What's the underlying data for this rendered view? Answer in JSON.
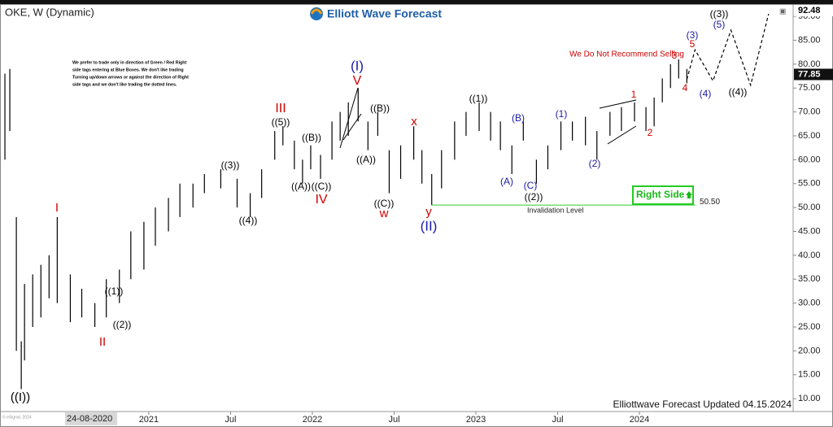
{
  "chart_data": {
    "type": "ohlc",
    "title": "OKE, W (Dynamic)",
    "brand": "Elliott Wave Forecast",
    "footer": "Elliottwave Forecast Updated 04.15.2024",
    "warning": "We Do Not Recommend Selling",
    "note": [
      "We prefer to trade only in direction of Green / Red Right",
      "side tags entering at Blue Boxes. We don't like trading",
      "Turning up/down arrows or against the direction of Right",
      "side tags and we don't like trading the dotted lines."
    ],
    "right_side": "Right Side",
    "cursor_label": "24-08-2020",
    "last_high": {
      "value": 92.48,
      "label": "92.48"
    },
    "last_price": {
      "value": 77.85,
      "label": "77.85"
    },
    "invalidation": {
      "value": 50.5,
      "label": "50.50",
      "text": "Invalidation Level",
      "start": 2022.73
    },
    "color": "#000000",
    "x": [
      2020.12,
      2020.15,
      2020.19,
      2020.22,
      2020.24,
      2020.29,
      2020.34,
      2020.39,
      2020.44,
      2020.52,
      2020.59,
      2020.67,
      2020.74,
      2020.82,
      2020.89,
      2020.97,
      2021.04,
      2021.12,
      2021.19,
      2021.27,
      2021.34,
      2021.44,
      2021.54,
      2021.62,
      2021.69,
      2021.77,
      2021.82,
      2021.89,
      2021.94,
      2021.99,
      2022.05,
      2022.12,
      2022.17,
      2022.22,
      2022.28,
      2022.34,
      2022.4,
      2022.47,
      2022.54,
      2022.62,
      2022.67,
      2022.73,
      2022.79,
      2022.87,
      2022.94,
      2023.02,
      2023.09,
      2023.15,
      2023.22,
      2023.29,
      2023.37,
      2023.44,
      2023.52,
      2023.59,
      2023.67,
      2023.74,
      2023.82,
      2023.89,
      2023.97,
      2024.04,
      2024.09,
      2024.14,
      2024.19,
      2024.24,
      2024.29
    ],
    "high": [
      78,
      79,
      48,
      22,
      34,
      36,
      38,
      40,
      48,
      36,
      33,
      30,
      35,
      37,
      45,
      47,
      50,
      52,
      55,
      55,
      57,
      58,
      56,
      53,
      58,
      66,
      67,
      64,
      60,
      63,
      61,
      68,
      70,
      72,
      75,
      68,
      70,
      62,
      63,
      67,
      62,
      57,
      62,
      68,
      70,
      72,
      70,
      68,
      63,
      68,
      60,
      63,
      68,
      68,
      69,
      66,
      70,
      71,
      72,
      71,
      73,
      77,
      80,
      81,
      79
    ],
    "low": [
      60,
      66,
      20,
      12,
      18,
      25,
      27,
      31,
      30,
      26,
      27,
      25,
      27,
      30,
      35,
      37,
      42,
      45,
      48,
      50,
      53,
      54,
      50,
      48,
      52,
      60,
      63,
      58,
      55,
      58,
      56,
      60,
      64,
      65,
      68,
      62,
      65,
      53,
      56,
      60,
      55,
      50.5,
      54,
      60,
      65,
      66,
      64,
      62,
      57,
      64,
      55,
      58,
      62,
      64,
      63,
      60,
      65,
      66,
      68,
      66,
      67,
      72,
      75,
      77,
      76
    ],
    "projection": {
      "x": [
        2024.29,
        2024.34,
        2024.45,
        2024.56,
        2024.68,
        2024.79
      ],
      "values": [
        76.8,
        83,
        76.5,
        87.1,
        75.6,
        90.5
      ]
    },
    "xlim": [
      2020.09,
      2024.94
    ],
    "ylim": [
      7.3,
      92.4
    ],
    "xticks": [
      {
        "value": 2021,
        "label": "2021"
      },
      {
        "value": 2021.5,
        "label": "Jul"
      },
      {
        "value": 2022,
        "label": "2022"
      },
      {
        "value": 2022.5,
        "label": "Jul"
      },
      {
        "value": 2023,
        "label": "2023"
      },
      {
        "value": 2023.5,
        "label": "Jul"
      },
      {
        "value": 2024,
        "label": "2024"
      }
    ],
    "yticks": [
      {
        "value": 10,
        "label": "10.00"
      },
      {
        "value": 15,
        "label": "15.00"
      },
      {
        "value": 20,
        "label": "20.00"
      },
      {
        "value": 25,
        "label": "25.00"
      },
      {
        "value": 30,
        "label": "30.00"
      },
      {
        "value": 35,
        "label": "35.00"
      },
      {
        "value": 40,
        "label": "40.00"
      },
      {
        "value": 45,
        "label": "45.00"
      },
      {
        "value": 50,
        "label": "50.00"
      },
      {
        "value": 55,
        "label": "55.00"
      },
      {
        "value": 60,
        "label": "60.00"
      },
      {
        "value": 65,
        "label": "65.00"
      },
      {
        "value": 70,
        "label": "70.00"
      },
      {
        "value": 75,
        "label": "75.00"
      },
      {
        "value": 80,
        "label": "80.00"
      },
      {
        "value": 85,
        "label": "85.00"
      },
      {
        "value": 90,
        "label": "90.00"
      }
    ],
    "annotations": [
      {
        "text": "((I))",
        "color": "#000000"
      },
      {
        "text": "I",
        "color": "#d00000"
      },
      {
        "text": "II",
        "color": "#d00000"
      },
      {
        "text": "((1))",
        "color": "#000000"
      },
      {
        "text": "((2))",
        "color": "#000000"
      },
      {
        "text": "((3))",
        "color": "#000000"
      },
      {
        "text": "((4))",
        "color": "#000000"
      },
      {
        "text": "((5))",
        "color": "#000000"
      },
      {
        "text": "III",
        "color": "#d00000"
      },
      {
        "text": "((A))",
        "color": "#000000"
      },
      {
        "text": "((B))",
        "color": "#000000"
      },
      {
        "text": "((C))",
        "color": "#000000"
      },
      {
        "text": "IV",
        "color": "#d00000"
      },
      {
        "text": "(I)",
        "color": "#1a1aa6"
      },
      {
        "text": "V",
        "color": "#d00000"
      },
      {
        "text": "((A))",
        "color": "#000000"
      },
      {
        "text": "((B))",
        "color": "#000000"
      },
      {
        "text": "((C))",
        "color": "#000000"
      },
      {
        "text": "w",
        "color": "#d00000"
      },
      {
        "text": "x",
        "color": "#d00000"
      },
      {
        "text": "y",
        "color": "#d00000"
      },
      {
        "text": "(II)",
        "color": "#1a1aa6"
      },
      {
        "text": "((1))",
        "color": "#000000"
      },
      {
        "text": "(B)",
        "color": "#1a1aa6"
      },
      {
        "text": "(A)",
        "color": "#1a1aa6"
      },
      {
        "text": "(C)",
        "color": "#1a1aa6"
      },
      {
        "text": "((2))",
        "color": "#000000"
      },
      {
        "text": "(1)",
        "color": "#1a1aa6"
      },
      {
        "text": "(2)",
        "color": "#1a1aa6"
      },
      {
        "text": "1",
        "color": "#d00000"
      },
      {
        "text": "2",
        "color": "#d00000"
      },
      {
        "text": "3",
        "color": "#d00000"
      },
      {
        "text": "4",
        "color": "#d00000"
      },
      {
        "text": "5",
        "color": "#d00000"
      },
      {
        "text": "(3)",
        "color": "#1a1aa6"
      },
      {
        "text": "(4)",
        "color": "#1a1aa6"
      },
      {
        "text": "(5)",
        "color": "#1a1aa6"
      },
      {
        "text": "((3))",
        "color": "#000000"
      },
      {
        "text": "((4))",
        "color": "#000000"
      }
    ]
  }
}
